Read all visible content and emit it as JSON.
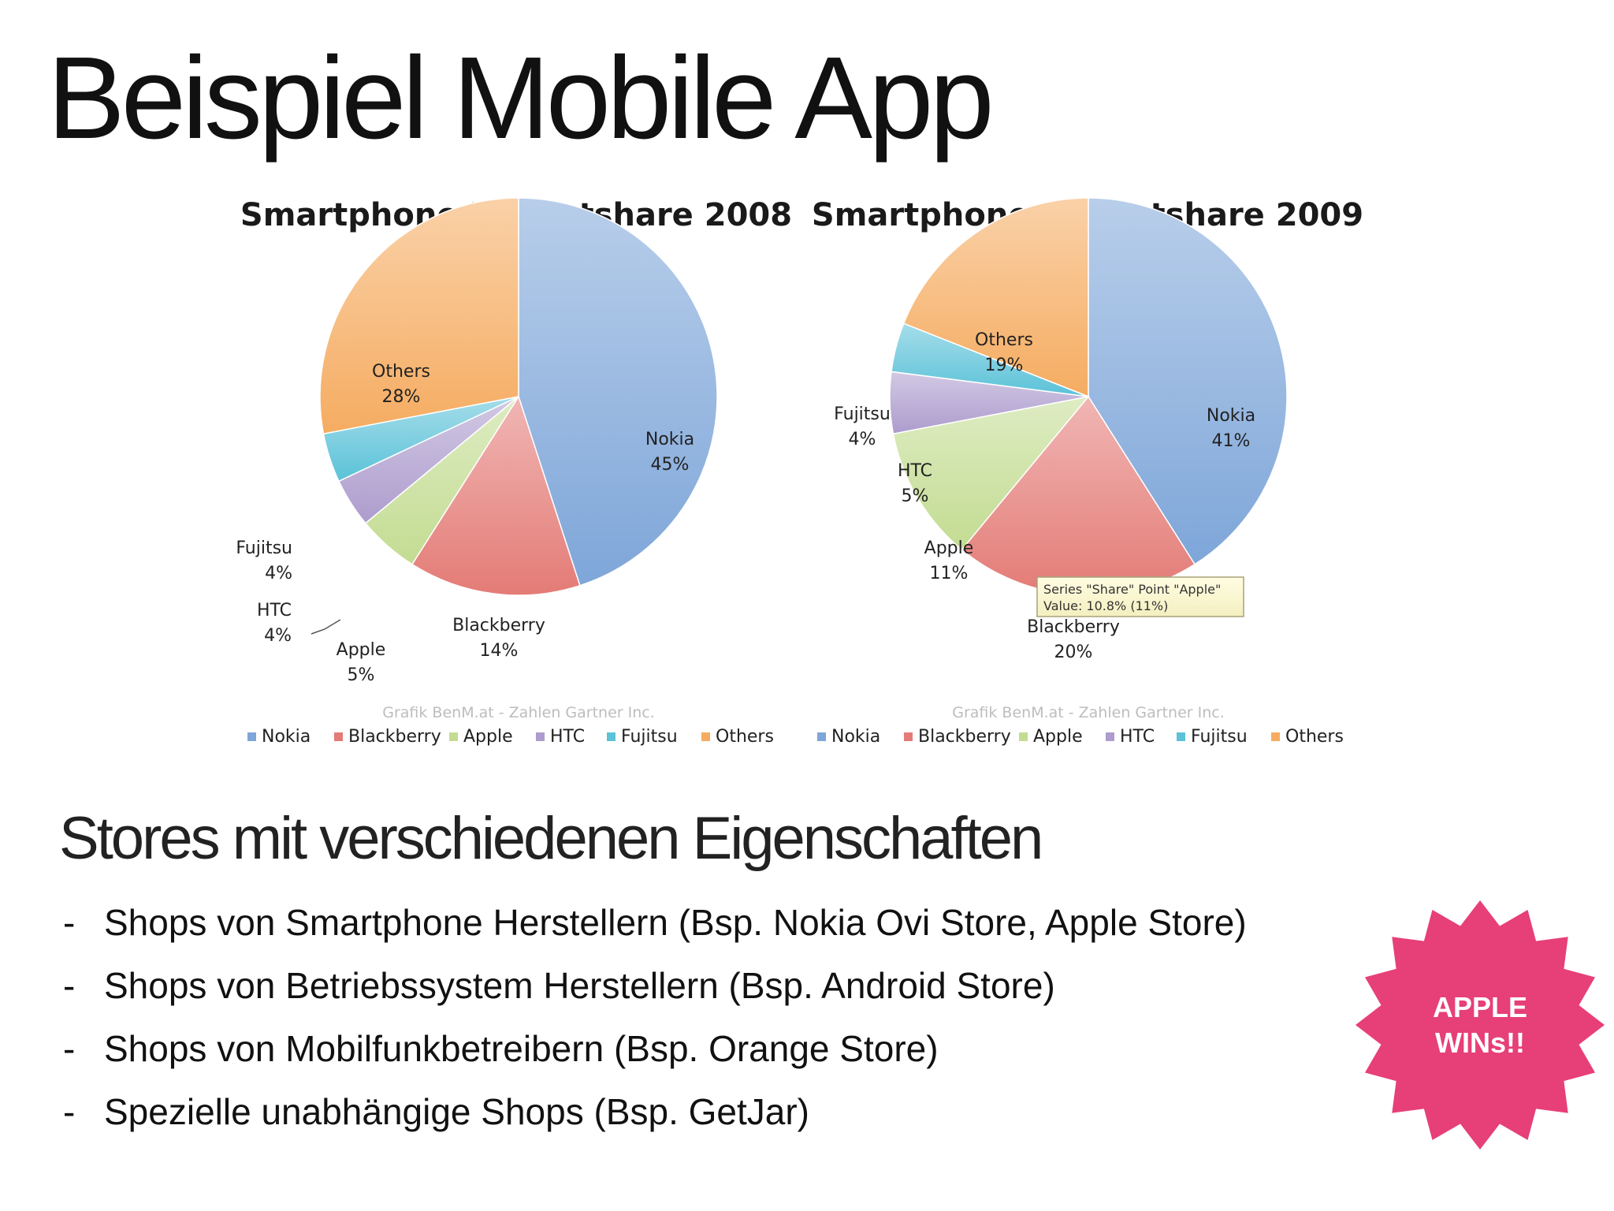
{
  "slide": {
    "title": "Beispiel Mobile App",
    "subtitle": "Stores mit verschiedenen Eigenschaften",
    "bullets": [
      "Shops von Smartphone Herstellern (Bsp. Nokia Ovi Store, Apple Store)",
      "Shops von Betriebssystem Herstellern (Bsp. Android Store)",
      "Shops von Mobilfunkbetreibern (Bsp. Orange Store)",
      "Spezielle unabhängige Shops (Bsp. GetJar)"
    ],
    "bullet_marker": "-",
    "badge": {
      "line1": "APPLE",
      "line2": "WINs!!",
      "color": "#e73f78"
    }
  },
  "chart_data": [
    {
      "type": "pie",
      "title": "Smartphone Marketshare 2008",
      "categories": [
        "Nokia",
        "Blackberry",
        "Apple",
        "HTC",
        "Fujitsu",
        "Others"
      ],
      "values": [
        45,
        14,
        5,
        4,
        4,
        28
      ],
      "labels": [
        "45%",
        "14%",
        "5%",
        "4%",
        "4%",
        "28%"
      ],
      "colors": [
        "#7ea6d9",
        "#e47b76",
        "#c3dc92",
        "#ad9ccd",
        "#5bc2d8",
        "#f5ac61"
      ],
      "credit": "Grafik BenM.at - Zahlen Gartner Inc.",
      "legend": "bottom"
    },
    {
      "type": "pie",
      "title": "Smartphone Marketshare 2009",
      "categories": [
        "Nokia",
        "Blackberry",
        "Apple",
        "HTC",
        "Fujitsu",
        "Others"
      ],
      "values": [
        41,
        20,
        11,
        5,
        4,
        19
      ],
      "labels": [
        "41%",
        "20%",
        "11%",
        "5%",
        "4%",
        "19%"
      ],
      "colors": [
        "#7ea6d9",
        "#e47b76",
        "#c3dc92",
        "#ad9ccd",
        "#5bc2d8",
        "#f5ac61"
      ],
      "credit": "Grafik BenM.at - Zahlen Gartner Inc.",
      "legend": "bottom",
      "tooltip": {
        "line1": "Series \"Share\" Point \"Apple\"",
        "line2": "Value: 10.8% (11%)"
      }
    }
  ]
}
